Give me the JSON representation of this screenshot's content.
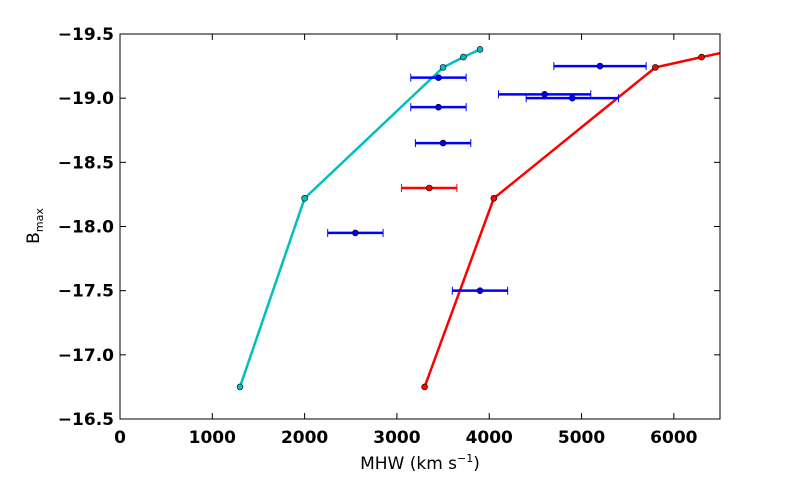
{
  "chart_data": {
    "type": "scatter",
    "title": "",
    "xlabel": "MHW (km s",
    "xlabel_sup": "−1",
    "xlabel_close": ")",
    "ylabel": "B",
    "ylabel_sub": "max",
    "xlim": [
      0,
      6500
    ],
    "ylim": [
      -16.5,
      -19.5
    ],
    "xticks": [
      0,
      1000,
      2000,
      3000,
      4000,
      5000,
      6000
    ],
    "xtick_labels": [
      "0",
      "1000",
      "2000",
      "3000",
      "4000",
      "5000",
      "6000"
    ],
    "yticks": [
      -16.5,
      -17.0,
      -17.5,
      -18.0,
      -18.5,
      -19.0,
      -19.5
    ],
    "ytick_labels": [
      "−16.5",
      "−17.0",
      "−17.5",
      "−18.0",
      "−18.5",
      "−19.0",
      "−19.5"
    ],
    "grid": false,
    "lines": [
      {
        "color": "#00bfbf",
        "x": [
          1300,
          2000,
          3500,
          3720,
          3900
        ],
        "y": [
          -16.75,
          -18.22,
          -19.24,
          -19.32,
          -19.38
        ]
      },
      {
        "color": "#ff0000",
        "x": [
          3300,
          4050,
          5800,
          6300,
          6500
        ],
        "y": [
          -16.75,
          -18.22,
          -19.24,
          -19.32,
          -19.35
        ],
        "marker_count": 4
      }
    ],
    "points": [
      {
        "x": 2550,
        "xerr": 300,
        "y": -17.95,
        "color": "#0000ff"
      },
      {
        "x": 3900,
        "xerr": 300,
        "y": -17.5,
        "color": "#0000ff"
      },
      {
        "x": 3350,
        "xerr": 300,
        "y": -18.3,
        "color": "#ff0000"
      },
      {
        "x": 3500,
        "xerr": 300,
        "y": -18.65,
        "color": "#0000ff"
      },
      {
        "x": 3450,
        "xerr": 300,
        "y": -18.93,
        "color": "#0000ff"
      },
      {
        "x": 3450,
        "xerr": 300,
        "y": -19.16,
        "color": "#0000ff"
      },
      {
        "x": 4600,
        "xerr": 500,
        "y": -19.03,
        "color": "#0000ff"
      },
      {
        "x": 4900,
        "xerr": 500,
        "y": -19.0,
        "color": "#0000ff"
      },
      {
        "x": 5200,
        "xerr": 500,
        "y": -19.25,
        "color": "#0000ff"
      }
    ]
  }
}
